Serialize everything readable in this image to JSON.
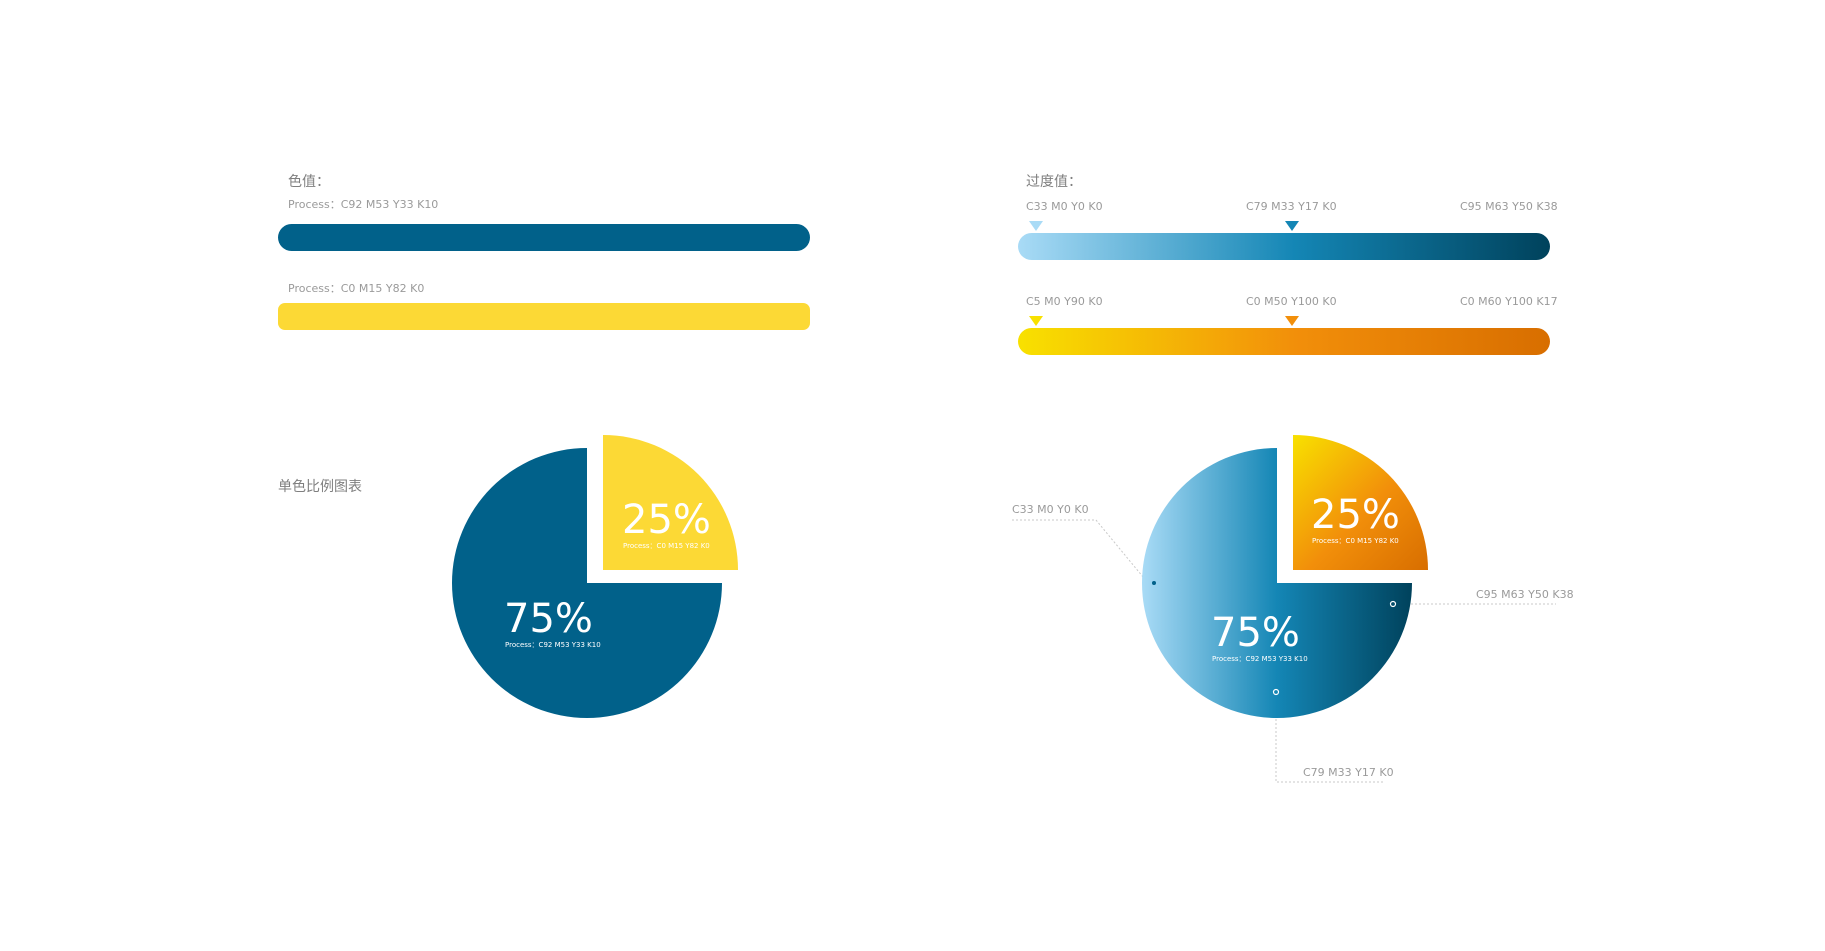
{
  "colors": {
    "blue": "#01618a",
    "yellow": "#fcd935",
    "grad_blue": [
      "#a9dbf6",
      "#1486b5",
      "#00425c"
    ],
    "grad_yellow": [
      "#f8e100",
      "#f28f0a",
      "#d86e00"
    ],
    "label_gray": "#9a9a9a",
    "leader_gray": "#c9c9c9"
  },
  "solid_panel": {
    "title": "色值：",
    "blue_bar_label": "Process：C92 M53 Y33 K10",
    "yellow_bar_label": "Process：C0 M15 Y82 K0"
  },
  "gradient_panel": {
    "title": "过度值：",
    "blue_bar": {
      "stops": [
        {
          "label": "C33 M0 Y0 K0",
          "position": 0,
          "marker": "#a9dbf6"
        },
        {
          "label": "C79 M33 Y17 K0",
          "position": 0.5,
          "marker": "#1486b5"
        },
        {
          "label": "C95 M63 Y50 K38",
          "position": 1
        }
      ]
    },
    "yellow_bar": {
      "stops": [
        {
          "label": "C5 M0 Y90 K0",
          "position": 0,
          "marker": "#f8e100"
        },
        {
          "label": "C0 M50 Y100 K0",
          "position": 0.5,
          "marker": "#f28f0a"
        },
        {
          "label": "C0 M60 Y100 K17",
          "position": 1
        }
      ]
    }
  },
  "chart_data": [
    {
      "type": "pie",
      "title": "单色比例图表",
      "slices": [
        {
          "label": "75%",
          "value": 75,
          "sublabel": "Process：C92 M53 Y33 K10",
          "color": "#01618a"
        },
        {
          "label": "25%",
          "value": 25,
          "sublabel": "Process：C0 M15 Y82 K0",
          "color": "#fcd935",
          "exploded": true
        }
      ]
    },
    {
      "type": "pie",
      "slices": [
        {
          "label": "75%",
          "value": 75,
          "sublabel": "Process：C92 M53 Y33 K10",
          "fill": "gradient-blue"
        },
        {
          "label": "25%",
          "value": 25,
          "sublabel": "Process：C0 M15 Y82 K0",
          "fill": "gradient-orange",
          "exploded": true
        }
      ],
      "annotations": [
        "C33 M0 Y0 K0",
        "C95 M63 Y50 K38",
        "C79 M33 Y17 K0"
      ]
    }
  ]
}
